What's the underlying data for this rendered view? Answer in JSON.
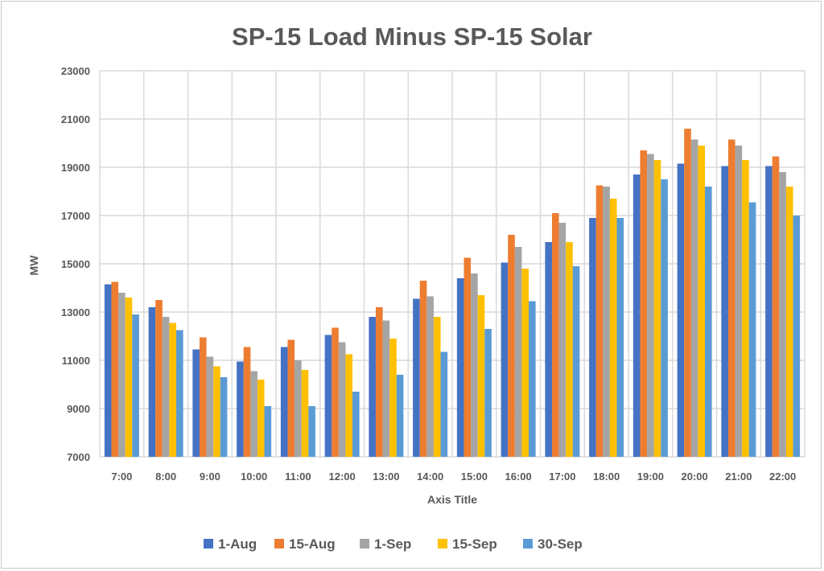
{
  "chart_data": {
    "type": "bar",
    "title": "SP-15 Load Minus SP-15 Solar",
    "xlabel": "Axis Title",
    "ylabel": "MW",
    "ylim": [
      7000,
      23000
    ],
    "yticks": [
      7000,
      9000,
      11000,
      13000,
      15000,
      17000,
      19000,
      21000,
      23000
    ],
    "grid": true,
    "legend_position": "bottom",
    "categories": [
      "7:00",
      "8:00",
      "9:00",
      "10:00",
      "11:00",
      "12:00",
      "13:00",
      "14:00",
      "15:00",
      "16:00",
      "17:00",
      "18:00",
      "19:00",
      "20:00",
      "21:00",
      "22:00"
    ],
    "series": [
      {
        "name": "1-Aug",
        "color": "#4472C4",
        "values": [
          14150,
          13200,
          11450,
          10950,
          11550,
          12050,
          12800,
          13550,
          14400,
          15050,
          15900,
          16900,
          18700,
          19150,
          19050,
          19050
        ]
      },
      {
        "name": "15-Aug",
        "color": "#ED7D31",
        "values": [
          14250,
          13500,
          11950,
          11550,
          11850,
          12350,
          13200,
          14300,
          15250,
          16200,
          17100,
          18250,
          19700,
          20600,
          20150,
          19450
        ]
      },
      {
        "name": "1-Sep",
        "color": "#A5A5A5",
        "values": [
          13800,
          12800,
          11150,
          10550,
          11000,
          11750,
          12650,
          13650,
          14600,
          15700,
          16700,
          18200,
          19550,
          20150,
          19900,
          18800
        ]
      },
      {
        "name": "15-Sep",
        "color": "#FFC000",
        "values": [
          13600,
          12550,
          10750,
          10200,
          10600,
          11250,
          11900,
          12800,
          13700,
          14800,
          15900,
          17700,
          19300,
          19900,
          19300,
          18200
        ]
      },
      {
        "name": "30-Sep",
        "color": "#5B9BD5",
        "values": [
          12900,
          12250,
          10300,
          9100,
          9100,
          9700,
          10400,
          11350,
          12300,
          13450,
          14900,
          16900,
          18500,
          18200,
          17550,
          17000
        ]
      }
    ]
  }
}
